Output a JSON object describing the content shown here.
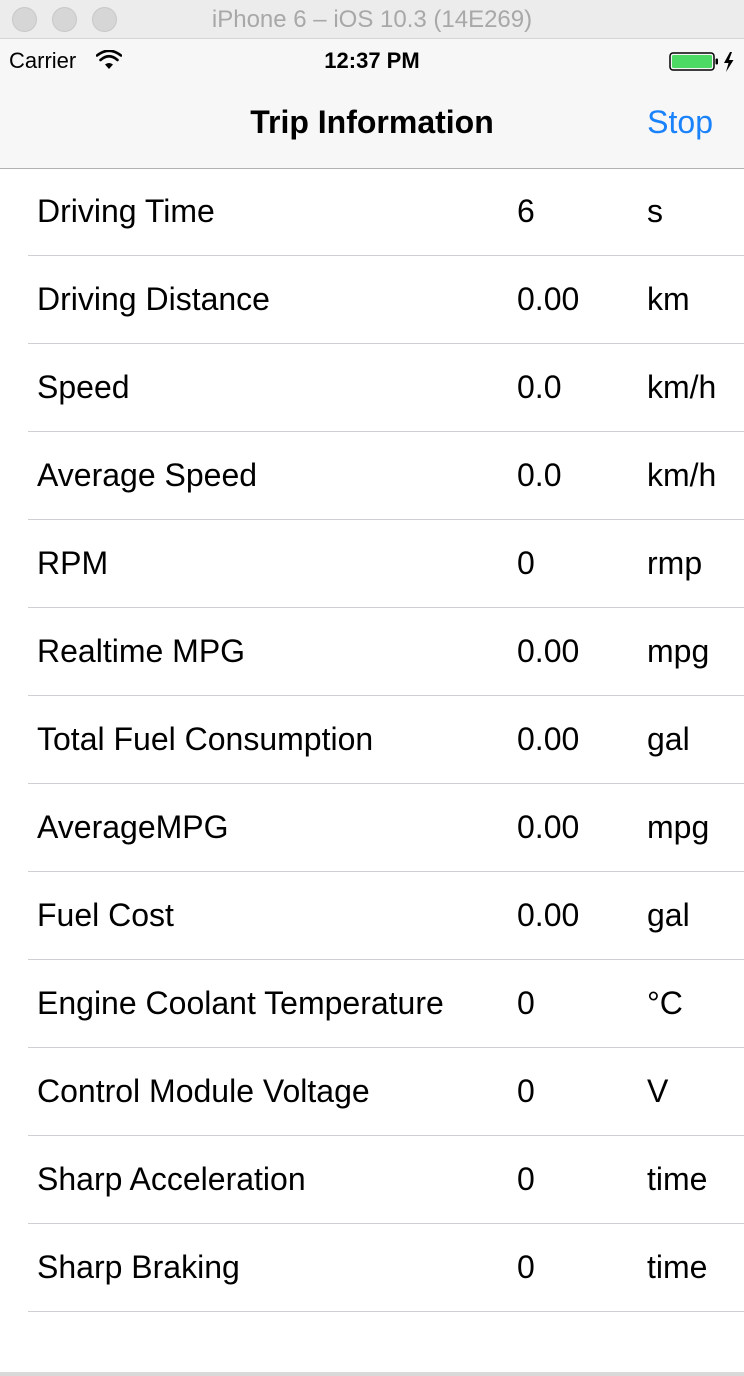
{
  "simulator": {
    "title": "iPhone 6 – iOS 10.3 (14E269)"
  },
  "status_bar": {
    "carrier": "Carrier",
    "time": "12:37 PM"
  },
  "nav": {
    "title": "Trip Information",
    "stop_label": "Stop"
  },
  "colors": {
    "accent": "#1a82fb",
    "battery": "#4cd964"
  },
  "rows": [
    {
      "label": "Driving Time",
      "value": "6",
      "unit": "s"
    },
    {
      "label": "Driving Distance",
      "value": "0.00",
      "unit": "km"
    },
    {
      "label": "Speed",
      "value": "0.0",
      "unit": "km/h"
    },
    {
      "label": "Average Speed",
      "value": "0.0",
      "unit": "km/h"
    },
    {
      "label": "RPM",
      "value": "0",
      "unit": "rmp"
    },
    {
      "label": "Realtime MPG",
      "value": "0.00",
      "unit": "mpg"
    },
    {
      "label": "Total Fuel Consumption",
      "value": "0.00",
      "unit": "gal"
    },
    {
      "label": "AverageMPG",
      "value": "0.00",
      "unit": "mpg"
    },
    {
      "label": "Fuel Cost",
      "value": "0.00",
      "unit": "gal"
    },
    {
      "label": "Engine Coolant Temperature",
      "value": "0",
      "unit": "°C"
    },
    {
      "label": "Control Module Voltage",
      "value": "0",
      "unit": "V"
    },
    {
      "label": "Sharp Acceleration",
      "value": "0",
      "unit": "time"
    },
    {
      "label": "Sharp Braking",
      "value": "0",
      "unit": "time"
    }
  ]
}
